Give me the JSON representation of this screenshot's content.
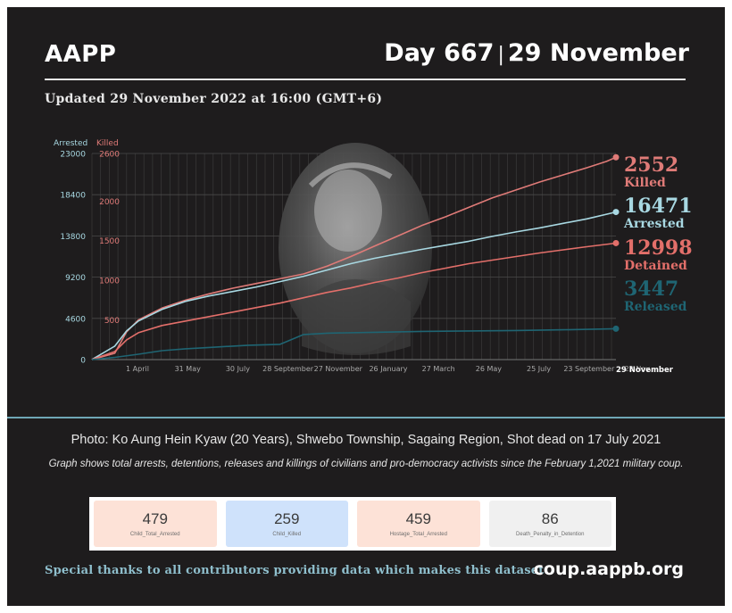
{
  "header": {
    "org": "AAPP",
    "day": "Day 667",
    "separator": "|",
    "date": "29 November",
    "updated": "Updated 29 November 2022 at 16:00 (GMT+6)"
  },
  "colors": {
    "killed": "#e07b78",
    "arrested": "#a8d8e2",
    "detained": "#e36f6a",
    "released": "#1f6573",
    "background": "#1e1c1d",
    "divider": "#6fa7b6",
    "stat_bg_1": "#fde2d7",
    "stat_bg_2": "#cfe2fb",
    "stat_bg_3": "#fde2d7",
    "stat_bg_4": "#f0f0f0"
  },
  "chart_data": {
    "type": "line",
    "grid": true,
    "axes": {
      "left_outer": {
        "title": "Arrested",
        "ticks": [
          "23000",
          "18400",
          "13800",
          "9200",
          "4600",
          "0"
        ],
        "range": [
          0,
          23000
        ]
      },
      "left_inner": {
        "title": "Killed",
        "ticks": [
          "2600",
          "2000",
          "1500",
          "1000",
          "500"
        ],
        "range": [
          0,
          2600
        ]
      }
    },
    "x_ticks": [
      "1 April",
      "31 May",
      "30 July",
      "28 September",
      "27 November",
      "26 January",
      "27 March",
      "26 May",
      "25 July",
      "23 September",
      "22 Nov.."
    ],
    "x_end_label": "29 November",
    "x_day_range": [
      1,
      667
    ],
    "series": [
      {
        "name": "Killed",
        "axis": "left_inner",
        "final": 2552,
        "label_value": "2552",
        "points": [
          [
            1,
            0
          ],
          [
            30,
            80
          ],
          [
            45,
            350
          ],
          [
            60,
            500
          ],
          [
            90,
            650
          ],
          [
            120,
            750
          ],
          [
            150,
            830
          ],
          [
            180,
            900
          ],
          [
            210,
            960
          ],
          [
            240,
            1020
          ],
          [
            270,
            1080
          ],
          [
            300,
            1180
          ],
          [
            330,
            1300
          ],
          [
            360,
            1430
          ],
          [
            390,
            1560
          ],
          [
            420,
            1690
          ],
          [
            450,
            1800
          ],
          [
            480,
            1920
          ],
          [
            510,
            2040
          ],
          [
            540,
            2140
          ],
          [
            570,
            2240
          ],
          [
            600,
            2330
          ],
          [
            630,
            2420
          ],
          [
            655,
            2500
          ],
          [
            667,
            2552
          ]
        ]
      },
      {
        "name": "Arrested",
        "axis": "left_outer",
        "final": 16471,
        "label_value": "16471",
        "points": [
          [
            1,
            0
          ],
          [
            30,
            1500
          ],
          [
            45,
            3200
          ],
          [
            60,
            4300
          ],
          [
            90,
            5600
          ],
          [
            120,
            6500
          ],
          [
            150,
            7100
          ],
          [
            180,
            7600
          ],
          [
            210,
            8100
          ],
          [
            240,
            8700
          ],
          [
            270,
            9300
          ],
          [
            300,
            10000
          ],
          [
            330,
            10700
          ],
          [
            360,
            11300
          ],
          [
            390,
            11800
          ],
          [
            420,
            12300
          ],
          [
            450,
            12750
          ],
          [
            480,
            13200
          ],
          [
            510,
            13750
          ],
          [
            540,
            14250
          ],
          [
            570,
            14700
          ],
          [
            600,
            15200
          ],
          [
            630,
            15700
          ],
          [
            667,
            16471
          ]
        ]
      },
      {
        "name": "Detained",
        "axis": "left_outer",
        "final": 12998,
        "label_value": "12998",
        "points": [
          [
            1,
            0
          ],
          [
            30,
            900
          ],
          [
            45,
            2200
          ],
          [
            60,
            3000
          ],
          [
            90,
            3800
          ],
          [
            120,
            4300
          ],
          [
            150,
            4800
          ],
          [
            180,
            5300
          ],
          [
            210,
            5800
          ],
          [
            240,
            6300
          ],
          [
            270,
            6900
          ],
          [
            300,
            7500
          ],
          [
            330,
            8000
          ],
          [
            360,
            8600
          ],
          [
            390,
            9100
          ],
          [
            420,
            9700
          ],
          [
            450,
            10200
          ],
          [
            480,
            10700
          ],
          [
            510,
            11100
          ],
          [
            540,
            11500
          ],
          [
            570,
            11900
          ],
          [
            600,
            12250
          ],
          [
            630,
            12600
          ],
          [
            667,
            12998
          ]
        ]
      },
      {
        "name": "Released",
        "axis": "left_outer",
        "final": 3447,
        "label_value": "3447",
        "points": [
          [
            1,
            0
          ],
          [
            30,
            250
          ],
          [
            60,
            600
          ],
          [
            90,
            1000
          ],
          [
            120,
            1200
          ],
          [
            150,
            1350
          ],
          [
            180,
            1500
          ],
          [
            200,
            1600
          ],
          [
            240,
            1700
          ],
          [
            270,
            2800
          ],
          [
            300,
            2950
          ],
          [
            360,
            3050
          ],
          [
            420,
            3150
          ],
          [
            480,
            3200
          ],
          [
            540,
            3250
          ],
          [
            600,
            3330
          ],
          [
            667,
            3447
          ]
        ]
      }
    ]
  },
  "captions": {
    "photo": "Photo: Ko Aung Hein Kyaw (20 Years), Shwebo Township, Sagaing Region, Shot dead on 17 July  2021",
    "graph_note": "Graph shows total arrests, detentions, releases and killings of civilians and pro-democracy activists since the February 1,2021 military coup."
  },
  "stats": [
    {
      "value": "479",
      "label": "Child_Total_Arrested"
    },
    {
      "value": "259",
      "label": "Child_Killed"
    },
    {
      "value": "459",
      "label": "Hostage_Total_Arrested"
    },
    {
      "value": "86",
      "label": "Death_Penalty_in_Detention"
    }
  ],
  "footer": {
    "thanks": "Special thanks to all contributors providing data which makes this dataset.",
    "site": "coup.aappb.org"
  }
}
